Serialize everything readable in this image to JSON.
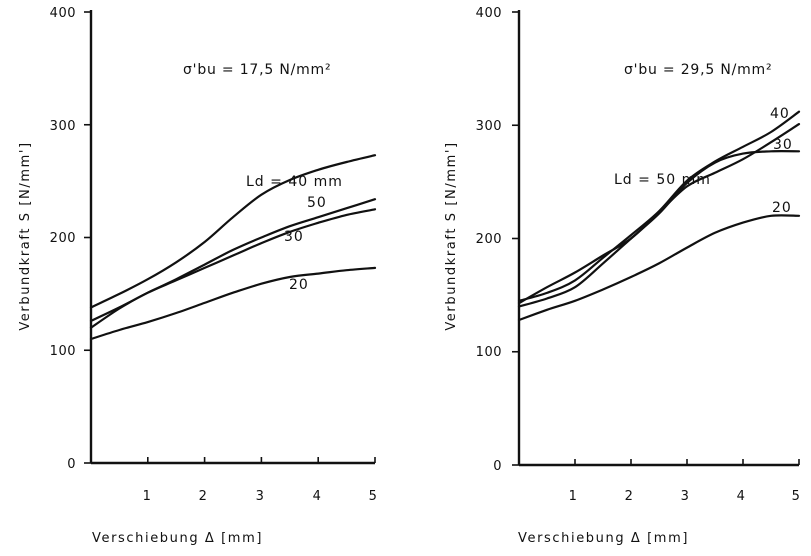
{
  "chart_data": [
    {
      "type": "line",
      "title": "",
      "annotation": "σ'bu = 17,5 N/mm²",
      "xlabel": "Verschiebung Δ [mm]",
      "ylabel": "Verbundkraft S [N/mm']",
      "xlim": [
        0,
        5
      ],
      "ylim": [
        0,
        400
      ],
      "xticks": [
        "1",
        "2",
        "3",
        "4",
        "5"
      ],
      "yticks": [
        "0",
        "100",
        "200",
        "300",
        "400"
      ],
      "grid": false,
      "series": [
        {
          "name": "Ld = 40 mm",
          "x": [
            0,
            0.5,
            1,
            1.5,
            2,
            2.5,
            3,
            3.5,
            4,
            4.5,
            5
          ],
          "y": [
            138,
            150,
            163,
            178,
            196,
            218,
            238,
            251,
            260,
            267,
            273
          ]
        },
        {
          "name": "50",
          "x": [
            0,
            0.5,
            1,
            1.5,
            2,
            2.5,
            3,
            3.5,
            4,
            4.5,
            5
          ],
          "y": [
            126,
            138,
            151,
            163,
            176,
            189,
            200,
            210,
            218,
            226,
            234
          ]
        },
        {
          "name": "30",
          "x": [
            0,
            0.5,
            1,
            1.5,
            2,
            2.5,
            3,
            3.5,
            4,
            4.5,
            5
          ],
          "y": [
            120,
            137,
            151,
            162,
            173,
            184,
            195,
            205,
            213,
            220,
            225
          ]
        },
        {
          "name": "20",
          "x": [
            0,
            0.5,
            1,
            1.5,
            2,
            2.5,
            3,
            3.5,
            4,
            4.5,
            5
          ],
          "y": [
            110,
            118,
            125,
            133,
            142,
            151,
            159,
            165,
            168,
            171,
            173
          ]
        }
      ]
    },
    {
      "type": "line",
      "title": "",
      "annotation": "σ'bu = 29,5 N/mm²",
      "xlabel": "Verschiebung Δ [mm]",
      "ylabel": "Verbundkraft S [N/mm']",
      "xlim": [
        0,
        5
      ],
      "ylim": [
        0,
        400
      ],
      "xticks": [
        "1",
        "2",
        "3",
        "4",
        "5"
      ],
      "yticks": [
        "0",
        "100",
        "200",
        "300",
        "400"
      ],
      "grid": false,
      "series": [
        {
          "name": "40",
          "x": [
            0,
            0.5,
            1,
            1.5,
            2,
            2.5,
            3,
            3.5,
            4,
            4.5,
            5
          ],
          "y": [
            145,
            152,
            163,
            183,
            203,
            224,
            251,
            268,
            281,
            294,
            312
          ]
        },
        {
          "name": "Ld = 50 mm",
          "x": [
            0,
            0.5,
            1,
            1.5,
            2,
            2.5,
            3,
            3.5,
            4,
            4.5,
            5
          ],
          "y": [
            140,
            147,
            157,
            178,
            200,
            222,
            249,
            267,
            275,
            277,
            277
          ]
        },
        {
          "name": "30",
          "x": [
            0,
            0.5,
            1,
            1.5,
            2,
            2.5,
            3,
            3.5,
            4,
            4.5,
            5
          ],
          "y": [
            143,
            157,
            170,
            185,
            200,
            223,
            246,
            258,
            270,
            285,
            301
          ]
        },
        {
          "name": "20",
          "x": [
            0,
            0.5,
            1,
            1.5,
            2,
            2.5,
            3,
            3.5,
            4,
            4.5,
            5
          ],
          "y": [
            128,
            137,
            145,
            155,
            166,
            178,
            192,
            205,
            214,
            220,
            220
          ]
        }
      ]
    }
  ]
}
